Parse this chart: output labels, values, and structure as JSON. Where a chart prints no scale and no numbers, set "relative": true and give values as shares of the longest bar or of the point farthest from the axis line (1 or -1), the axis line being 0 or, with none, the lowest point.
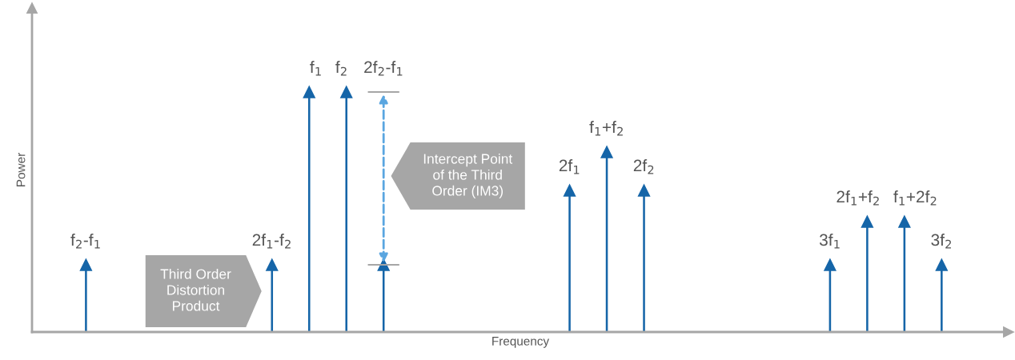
{
  "chart_data": {
    "type": "lollipop",
    "relative": true,
    "marker": "triangle",
    "color": "#1565a8",
    "xlabel": "Frequency",
    "ylabel": "Power",
    "categories": [
      "f$_{2}$-f$_{1}$",
      null,
      null,
      null,
      null,
      "2f$_{1}$-f$_{2}$",
      "f$_{1}$",
      "f$_{2}$",
      "2f$_{2}$-f$_{1}$",
      null,
      null,
      null,
      null,
      "2f$_{1}$",
      "f$_{1}$+f$_{2}$",
      "2f$_{2}$",
      null,
      null,
      null,
      null,
      "3f$_{1}$",
      "2f$_{1}$+f$_{2}$",
      "f$_{1}$+2f$_{2}$",
      "3f$_{2}$"
    ],
    "values": [
      0.28,
      null,
      null,
      null,
      null,
      0.28,
      1.0,
      1.0,
      0.28,
      null,
      null,
      null,
      null,
      0.59,
      0.75,
      0.59,
      null,
      null,
      null,
      null,
      0.28,
      0.46,
      0.46,
      0.28
    ],
    "annotations": [
      "Third Order\nDistortion\nProduct",
      "Intercept Point\nof the Third\nOrder (IM3)"
    ]
  }
}
